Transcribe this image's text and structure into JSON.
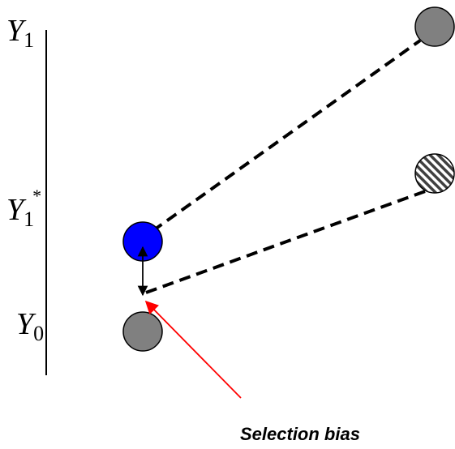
{
  "labels": {
    "y1": {
      "base": "Y",
      "sub": "1"
    },
    "y1_star": {
      "base": "Y",
      "sub": "1",
      "sup": "*"
    },
    "y0": {
      "base": "Y",
      "sub": "0"
    },
    "selection_bias": "Selection bias"
  },
  "colors": {
    "treated_node": "#0000ff",
    "outcome_node": "#808080",
    "bias_arrow": "#ff0000",
    "lines": "#000000",
    "background": "#ffffff"
  },
  "nodes": {
    "top_right": {
      "fill": "gray"
    },
    "hatched": {
      "fill": "hatched"
    },
    "blue": {
      "fill": "blue"
    },
    "bottom": {
      "fill": "gray"
    }
  }
}
